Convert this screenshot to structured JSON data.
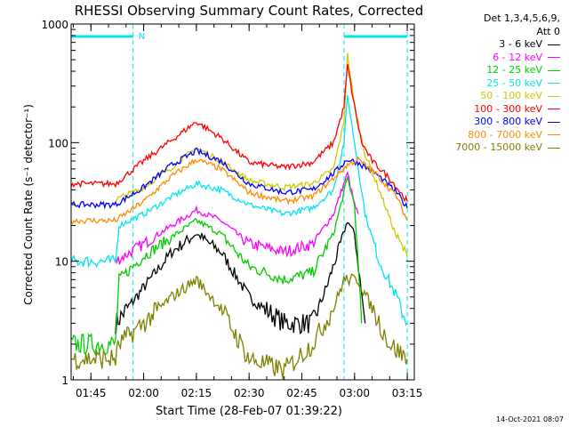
{
  "chart_data": {
    "type": "line",
    "title": "RHESSI Observing Summary Count Rates, Corrected",
    "xlabel": "Start Time (28-Feb-07 01:39:22)",
    "ylabel": "Corrected Count Rate (s⁻¹ detector⁻¹)",
    "y_scale": "log",
    "ylim": [
      1,
      1000
    ],
    "y_ticks": [
      "1",
      "10",
      "100",
      "1000"
    ],
    "xlim": [
      "01:39:22",
      "03:17"
    ],
    "x_ticks": [
      "01:45",
      "02:00",
      "02:15",
      "02:30",
      "02:45",
      "03:00",
      "03:15"
    ],
    "legend_header": [
      "Det 1,3,4,5,6,9,",
      "Att 0"
    ],
    "legend_position": "right, outside plot",
    "annotations": {
      "night_marker": "N",
      "markers_color": "#00e5ee",
      "dashed_lines_at": [
        "01:57",
        "02:57",
        "03:15"
      ],
      "bars": [
        [
          "01:39:22",
          "01:57"
        ],
        [
          "02:57",
          "03:15"
        ]
      ]
    },
    "series": [
      {
        "name": "3 - 6 keV",
        "color": "#000000",
        "points": [
          [
            "01:52",
            3
          ],
          [
            "02:00",
            6
          ],
          [
            "02:08",
            12
          ],
          [
            "02:15",
            17
          ],
          [
            "02:22",
            12
          ],
          [
            "02:30",
            5
          ],
          [
            "02:40",
            3
          ],
          [
            "02:48",
            3
          ],
          [
            "02:52",
            6
          ],
          [
            "02:56",
            14
          ],
          [
            "02:58",
            22
          ],
          [
            "03:00",
            17
          ],
          [
            "03:03",
            3
          ]
        ]
      },
      {
        "name": "6 - 12 keV",
        "color": "#ff00ff",
        "points": [
          [
            "01:52",
            10
          ],
          [
            "02:00",
            14
          ],
          [
            "02:08",
            20
          ],
          [
            "02:15",
            27
          ],
          [
            "02:22",
            22
          ],
          [
            "02:30",
            14
          ],
          [
            "02:40",
            12
          ],
          [
            "02:48",
            14
          ],
          [
            "02:54",
            25
          ],
          [
            "02:58",
            55
          ],
          [
            "03:00",
            30
          ],
          [
            "03:01",
            25
          ]
        ]
      },
      {
        "name": "12 - 25 keV",
        "color": "#00cc00",
        "points": [
          [
            "01:39:22",
            2
          ],
          [
            "01:52",
            2
          ],
          [
            "01:53",
            7
          ],
          [
            "02:00",
            11
          ],
          [
            "02:08",
            16
          ],
          [
            "02:15",
            22
          ],
          [
            "02:22",
            17
          ],
          [
            "02:30",
            9
          ],
          [
            "02:40",
            7
          ],
          [
            "02:48",
            8
          ],
          [
            "02:54",
            17
          ],
          [
            "02:58",
            50
          ],
          [
            "03:00",
            30
          ],
          [
            "03:02",
            3
          ]
        ]
      },
      {
        "name": "25 - 50 keV",
        "color": "#00e5ee",
        "points": [
          [
            "01:39:22",
            10
          ],
          [
            "01:52",
            10
          ],
          [
            "01:53",
            20
          ],
          [
            "02:00",
            25
          ],
          [
            "02:08",
            35
          ],
          [
            "02:15",
            45
          ],
          [
            "02:22",
            40
          ],
          [
            "02:30",
            30
          ],
          [
            "02:40",
            25
          ],
          [
            "02:48",
            28
          ],
          [
            "02:54",
            40
          ],
          [
            "02:57",
            100
          ],
          [
            "02:58",
            250
          ],
          [
            "03:00",
            100
          ],
          [
            "03:03",
            25
          ],
          [
            "03:07",
            10
          ],
          [
            "03:12",
            5
          ],
          [
            "03:15",
            3
          ]
        ]
      },
      {
        "name": "50 - 100 keV",
        "color": "#cccc00",
        "points": [
          [
            "01:52",
            33
          ],
          [
            "02:00",
            42
          ],
          [
            "02:08",
            62
          ],
          [
            "02:15",
            90
          ],
          [
            "02:22",
            70
          ],
          [
            "02:30",
            48
          ],
          [
            "02:40",
            42
          ],
          [
            "02:48",
            45
          ],
          [
            "02:54",
            60
          ],
          [
            "02:57",
            150
          ],
          [
            "02:58",
            550
          ],
          [
            "03:00",
            200
          ],
          [
            "03:03",
            80
          ],
          [
            "03:07",
            40
          ],
          [
            "03:12",
            16
          ],
          [
            "03:15",
            11
          ]
        ]
      },
      {
        "name": "100 - 300 keV",
        "color": "#ff0000",
        "points": [
          [
            "01:39:22",
            45
          ],
          [
            "01:52",
            45
          ],
          [
            "02:00",
            70
          ],
          [
            "02:08",
            105
          ],
          [
            "02:15",
            150
          ],
          [
            "02:22",
            110
          ],
          [
            "02:30",
            68
          ],
          [
            "02:40",
            62
          ],
          [
            "02:48",
            68
          ],
          [
            "02:54",
            100
          ],
          [
            "02:57",
            200
          ],
          [
            "02:58",
            450
          ],
          [
            "03:00",
            200
          ],
          [
            "03:02",
            100
          ],
          [
            "03:05",
            70
          ],
          [
            "03:10",
            50
          ],
          [
            "03:15",
            32
          ]
        ]
      },
      {
        "name": "300 - 800 keV",
        "color": "#0000ff",
        "points": [
          [
            "01:39:22",
            30
          ],
          [
            "01:52",
            30
          ],
          [
            "02:00",
            42
          ],
          [
            "02:08",
            65
          ],
          [
            "02:15",
            85
          ],
          [
            "02:22",
            70
          ],
          [
            "02:30",
            45
          ],
          [
            "02:40",
            38
          ],
          [
            "02:48",
            40
          ],
          [
            "02:54",
            55
          ],
          [
            "02:58",
            72
          ],
          [
            "03:01",
            68
          ],
          [
            "03:06",
            55
          ],
          [
            "03:12",
            38
          ],
          [
            "03:15",
            28
          ]
        ]
      },
      {
        "name": "800 - 7000 keV",
        "color": "#ff8c00",
        "points": [
          [
            "01:39:22",
            22
          ],
          [
            "01:52",
            22
          ],
          [
            "02:00",
            32
          ],
          [
            "02:08",
            52
          ],
          [
            "02:15",
            72
          ],
          [
            "02:22",
            60
          ],
          [
            "02:30",
            38
          ],
          [
            "02:40",
            32
          ],
          [
            "02:48",
            35
          ],
          [
            "02:54",
            50
          ],
          [
            "02:58",
            65
          ],
          [
            "03:01",
            72
          ],
          [
            "03:06",
            55
          ],
          [
            "03:12",
            35
          ],
          [
            "03:15",
            22
          ]
        ]
      },
      {
        "name": "7000 - 15000 keV",
        "color": "#808000",
        "points": [
          [
            "01:39:22",
            1.5
          ],
          [
            "01:52",
            1.5
          ],
          [
            "01:53",
            2
          ],
          [
            "02:00",
            3
          ],
          [
            "02:08",
            5
          ],
          [
            "02:15",
            7
          ],
          [
            "02:22",
            4
          ],
          [
            "02:30",
            1.5
          ],
          [
            "02:40",
            1.2
          ],
          [
            "02:48",
            2
          ],
          [
            "02:54",
            4
          ],
          [
            "02:57",
            7
          ],
          [
            "03:01",
            7
          ],
          [
            "03:05",
            4
          ],
          [
            "03:10",
            2
          ],
          [
            "03:15",
            1.5
          ]
        ]
      }
    ]
  },
  "footer": {
    "timestamp": "14-Oct-2021 08:07"
  }
}
